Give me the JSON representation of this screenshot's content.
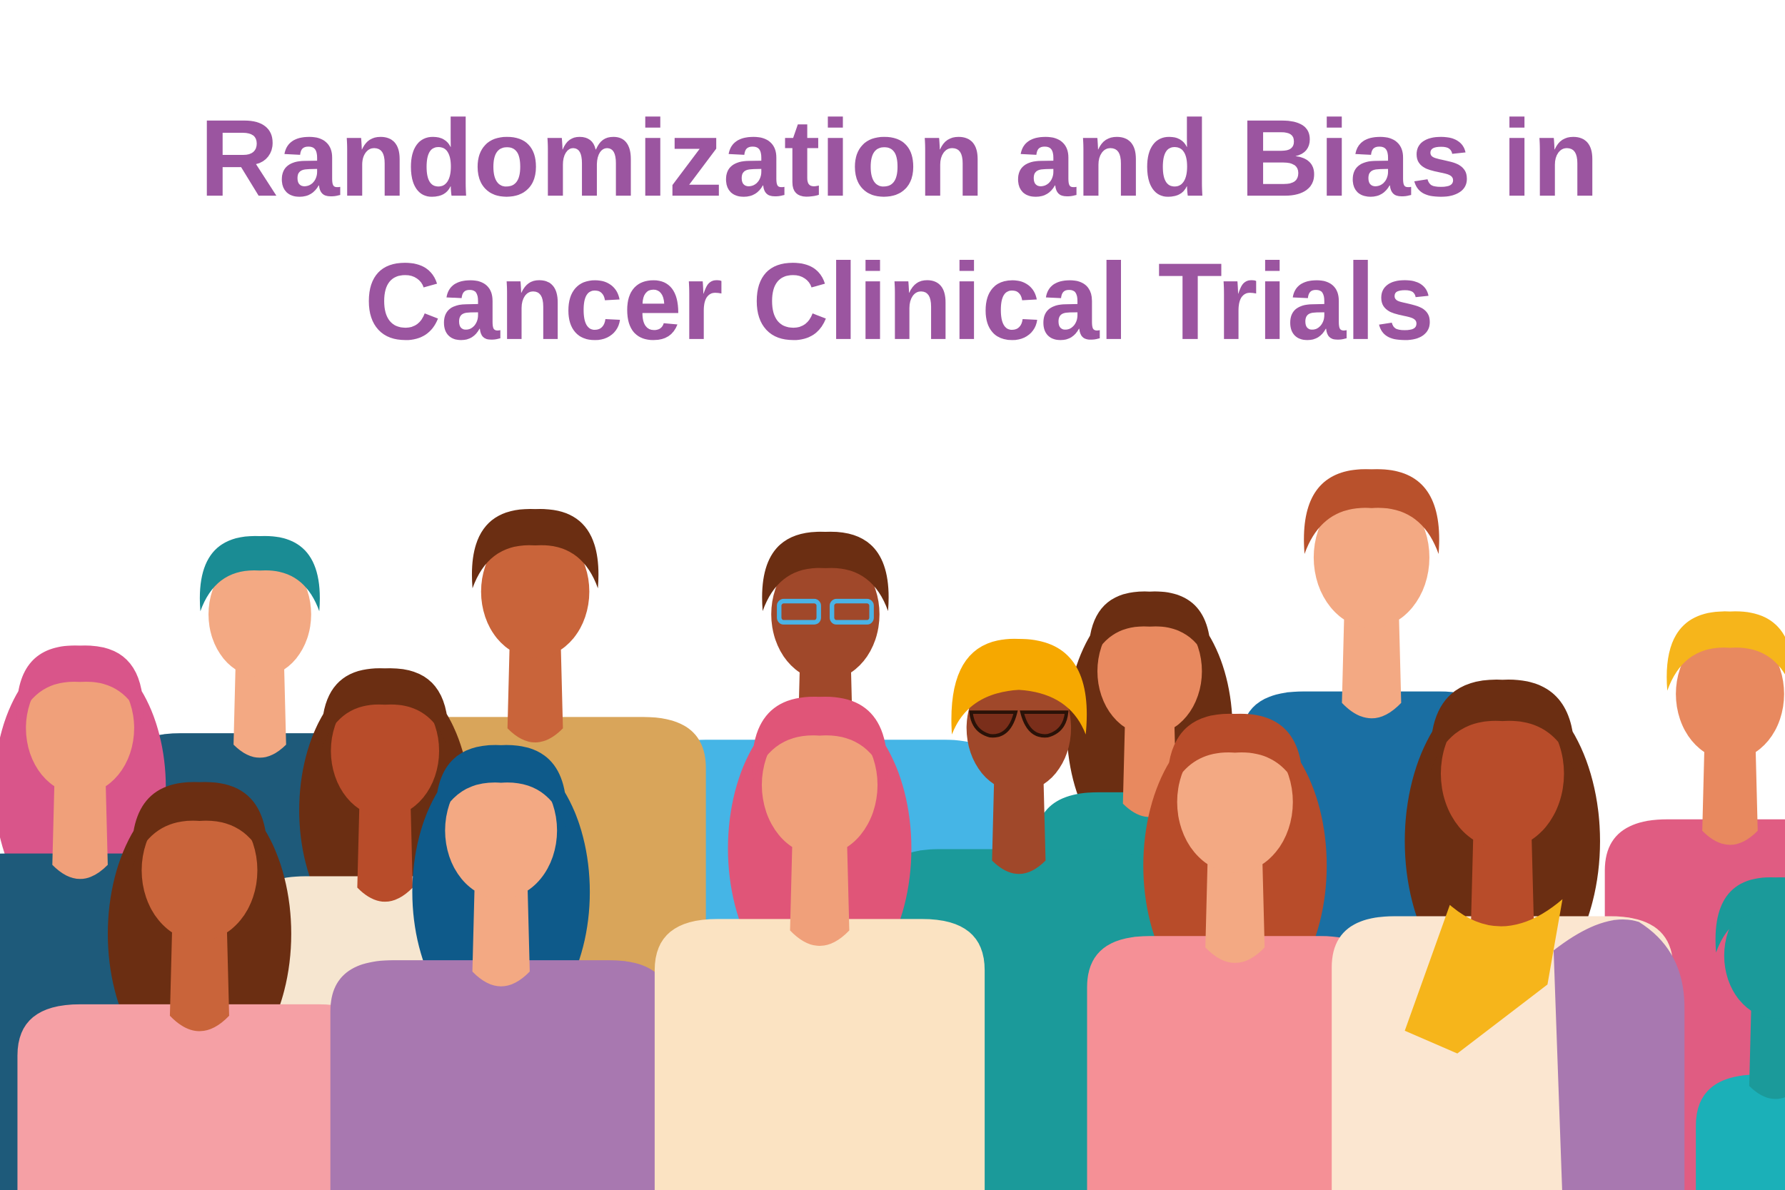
{
  "header": {
    "title_lines": [
      "Randomization and Bias in",
      "Cancer Clinical Trials"
    ]
  }
}
